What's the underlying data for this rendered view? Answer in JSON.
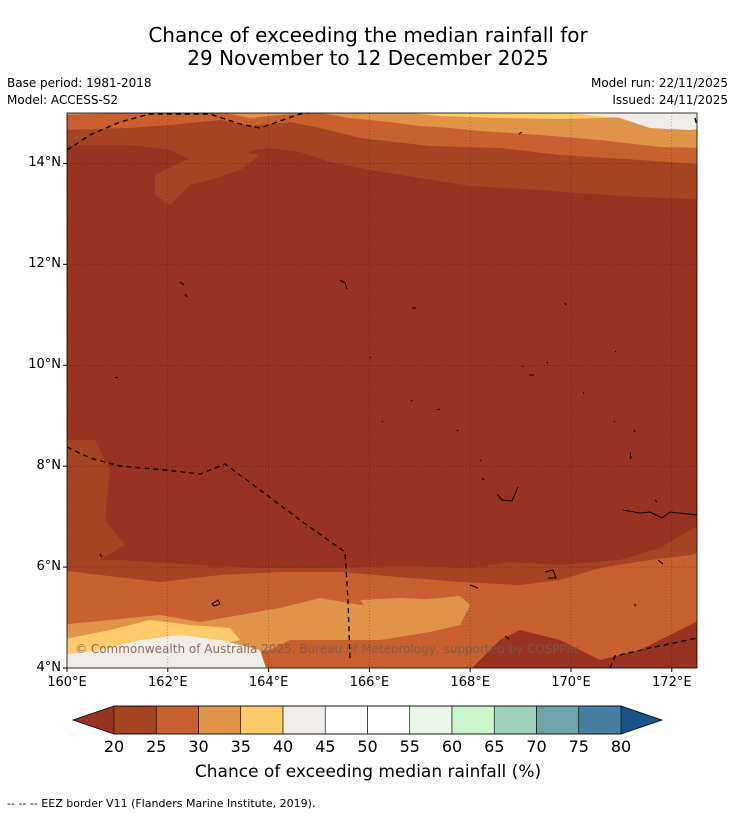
{
  "title": {
    "line1": "Chance of exceeding the median rainfall for",
    "line2": "29 November to 12 December 2025"
  },
  "meta": {
    "base_period": "Base period: 1981-2018",
    "model": "Model: ACCESS-S2",
    "model_run": "Model run: 22/11/2025",
    "issued": "Issued: 24/11/2025"
  },
  "map": {
    "lon_range": [
      160,
      172.5
    ],
    "lat_range": [
      4,
      15
    ],
    "lon_ticks": [
      "160°E",
      "162°E",
      "164°E",
      "166°E",
      "168°E",
      "170°E",
      "172°E"
    ],
    "lat_ticks": [
      "4°N",
      "6°N",
      "8°N",
      "10°N",
      "12°N",
      "14°N"
    ],
    "copyright": "© Commonwealth of Australia 2025, Bureau of Meteorology, supported by COSPPac"
  },
  "colorbar": {
    "labels": [
      "20",
      "25",
      "30",
      "35",
      "40",
      "45",
      "50",
      "55",
      "60",
      "65",
      "70",
      "75",
      "80"
    ],
    "colors": [
      "#A44422",
      "#C8612F",
      "#E0944A",
      "#FECB6B",
      "#F0ECE8",
      "#FFFFFF",
      "#FFFFFF",
      "#E8F6E6",
      "#C9F5C9",
      "#9ED1BA",
      "#6DA4A8",
      "#467F9F"
    ],
    "low_color": "#973320",
    "high_color": "#155389",
    "title": "Chance of exceeding median rainfall (%)"
  },
  "footer": "-- -- -- EEZ border V11 (Flanders Marine Institute, 2019)."
}
